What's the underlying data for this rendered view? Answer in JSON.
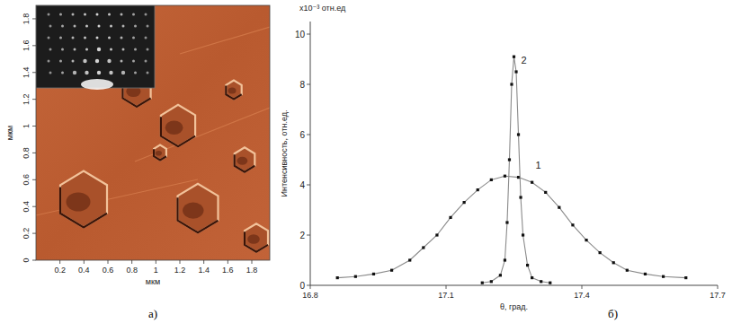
{
  "chart_data": [
    {
      "type": "image",
      "caption": "а)",
      "xlabel": "мкм",
      "ylabel": "мкм",
      "xlim": [
        0,
        1.95
      ],
      "ylim": [
        0,
        1.9
      ],
      "xticks": [
        0.2,
        0.4,
        0.6,
        0.8,
        1,
        1.2,
        1.4,
        1.6,
        1.8
      ],
      "yticks": [
        0,
        0.2,
        0.4,
        0.6,
        0.8,
        1,
        1.2,
        1.4,
        1.6,
        1.8
      ]
    },
    {
      "type": "line",
      "caption": "б)",
      "xlabel": "θ, град.",
      "ylabel": "Интенсивность, отн.ед.",
      "annotations": [
        "x10⁻³ отн.ед"
      ],
      "xlim": [
        16.8,
        17.7
      ],
      "ylim": [
        0,
        10.5
      ],
      "xticks": [
        16.8,
        17.1,
        17.4,
        17.7
      ],
      "yticks": [
        0,
        2,
        4,
        6,
        8,
        10
      ],
      "marker": "square",
      "series": [
        {
          "name": "1",
          "color": "#8a8a8a",
          "x": [
            16.86,
            16.9,
            16.94,
            16.98,
            17.02,
            17.05,
            17.08,
            17.11,
            17.14,
            17.17,
            17.2,
            17.23,
            17.26,
            17.29,
            17.32,
            17.35,
            17.38,
            17.41,
            17.44,
            17.47,
            17.5,
            17.54,
            17.58,
            17.63
          ],
          "values": [
            0.3,
            0.35,
            0.45,
            0.6,
            1.0,
            1.5,
            2.0,
            2.7,
            3.3,
            3.8,
            4.2,
            4.35,
            4.3,
            4.1,
            3.7,
            3.1,
            2.4,
            1.8,
            1.3,
            0.9,
            0.6,
            0.45,
            0.35,
            0.3
          ]
        },
        {
          "name": "2",
          "color": "#8a8a8a",
          "x": [
            17.18,
            17.2,
            17.22,
            17.23,
            17.235,
            17.24,
            17.245,
            17.25,
            17.255,
            17.26,
            17.265,
            17.27,
            17.28,
            17.29,
            17.31,
            17.33
          ],
          "values": [
            0.1,
            0.15,
            0.4,
            1.0,
            2.5,
            5.0,
            8.0,
            9.1,
            8.5,
            6.0,
            3.5,
            2.0,
            0.8,
            0.3,
            0.15,
            0.1
          ]
        }
      ]
    }
  ]
}
